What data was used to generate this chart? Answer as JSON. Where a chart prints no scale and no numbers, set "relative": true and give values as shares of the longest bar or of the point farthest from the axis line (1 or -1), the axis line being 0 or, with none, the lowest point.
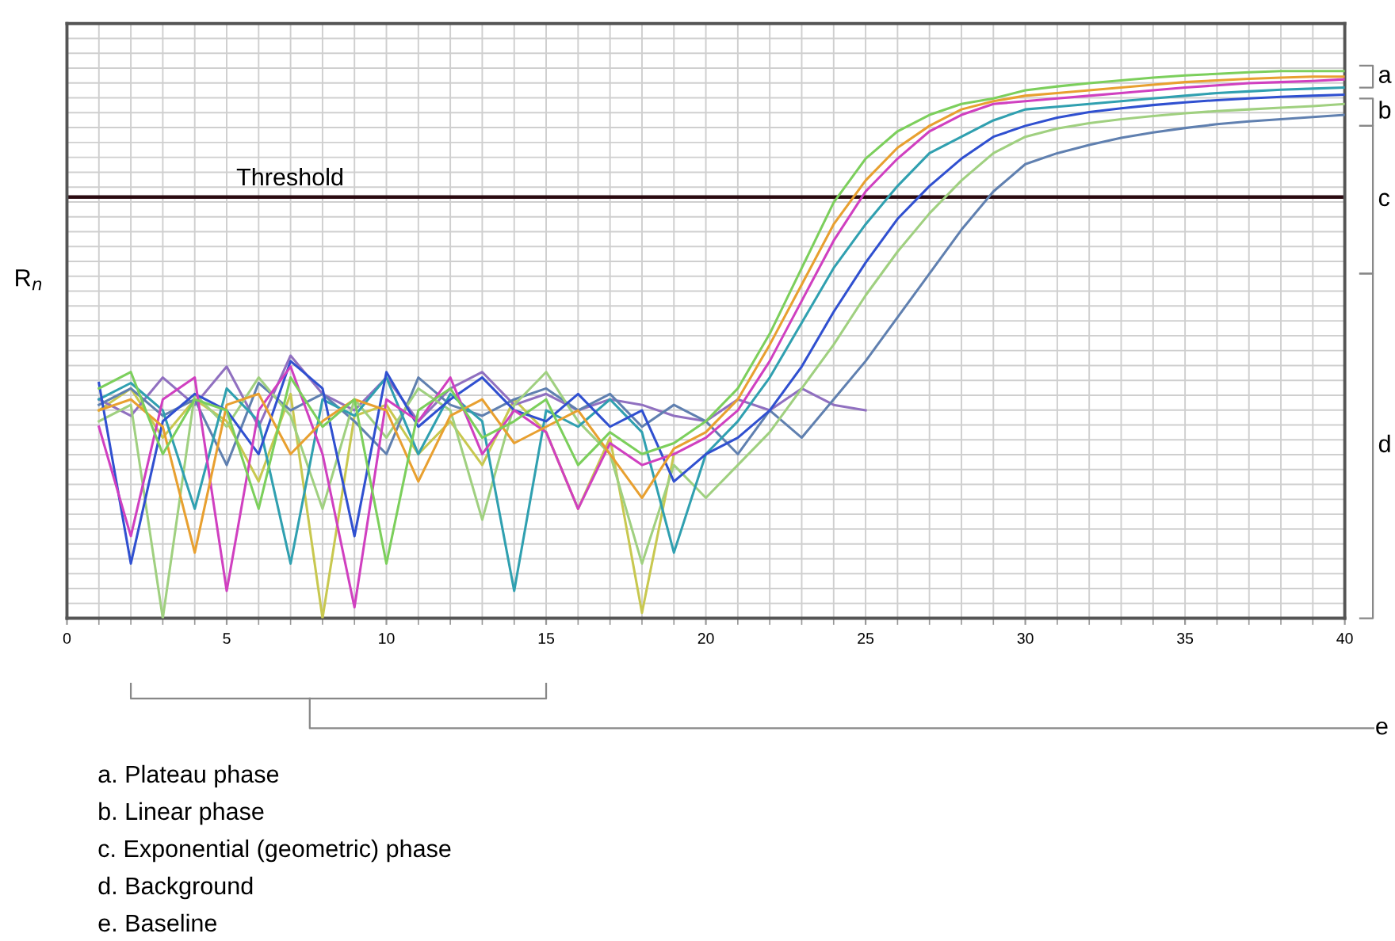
{
  "chart_data": {
    "type": "line",
    "relative": true,
    "ylabel": "R$_{n}$",
    "xlim": [
      0,
      40
    ],
    "xticks": [
      0,
      5,
      10,
      15,
      20,
      25,
      30,
      35,
      40
    ],
    "grid": true,
    "legend": false,
    "marker": "none",
    "line_style": "solid",
    "x": [
      1,
      2,
      3,
      4,
      5,
      6,
      7,
      8,
      9,
      10,
      11,
      12,
      13,
      14,
      15,
      16,
      17,
      18,
      19,
      20,
      21,
      22,
      23,
      24,
      25,
      26,
      27,
      28,
      29,
      30,
      31,
      32,
      33,
      34,
      35,
      36,
      37,
      38,
      39,
      40
    ],
    "series": [
      {
        "color": "#7ccf5c",
        "values": [
          0.42,
          0.45,
          0.3,
          0.4,
          0.38,
          0.2,
          0.44,
          0.35,
          0.4,
          0.1,
          0.38,
          0.42,
          0.33,
          0.36,
          0.4,
          0.28,
          0.34,
          0.3,
          0.32,
          0.36,
          0.42,
          0.52,
          0.64,
          0.76,
          0.84,
          0.89,
          0.92,
          0.94,
          0.95,
          0.965,
          0.972,
          0.978,
          0.983,
          0.988,
          0.992,
          0.995,
          0.998,
          1.0,
          1.0,
          1.0
        ]
      },
      {
        "color": "#e8a030",
        "values": [
          0.38,
          0.4,
          0.35,
          0.12,
          0.39,
          0.41,
          0.3,
          0.36,
          0.4,
          0.38,
          0.25,
          0.37,
          0.4,
          0.32,
          0.35,
          0.38,
          0.3,
          0.22,
          0.31,
          0.34,
          0.4,
          0.5,
          0.61,
          0.72,
          0.8,
          0.86,
          0.9,
          0.93,
          0.945,
          0.955,
          0.96,
          0.965,
          0.97,
          0.975,
          0.98,
          0.983,
          0.986,
          0.988,
          0.99,
          0.99
        ]
      },
      {
        "color": "#d040c0",
        "values": [
          0.35,
          0.15,
          0.4,
          0.44,
          0.05,
          0.38,
          0.46,
          0.3,
          0.02,
          0.4,
          0.36,
          0.44,
          0.3,
          0.38,
          0.34,
          0.2,
          0.32,
          0.28,
          0.3,
          0.33,
          0.38,
          0.47,
          0.58,
          0.69,
          0.78,
          0.84,
          0.89,
          0.92,
          0.94,
          0.945,
          0.95,
          0.955,
          0.96,
          0.965,
          0.97,
          0.974,
          0.978,
          0.98,
          0.982,
          0.985
        ]
      },
      {
        "color": "#3050d0",
        "values": [
          0.43,
          0.1,
          0.36,
          0.41,
          0.38,
          0.3,
          0.47,
          0.42,
          0.15,
          0.45,
          0.35,
          0.4,
          0.44,
          0.38,
          0.36,
          0.41,
          0.35,
          0.38,
          0.25,
          0.3,
          0.33,
          0.38,
          0.46,
          0.56,
          0.65,
          0.73,
          0.79,
          0.84,
          0.88,
          0.9,
          0.915,
          0.925,
          0.932,
          0.938,
          0.943,
          0.947,
          0.95,
          0.953,
          0.955,
          0.957
        ]
      },
      {
        "color": "#30a0b0",
        "values": [
          0.4,
          0.43,
          0.38,
          0.2,
          0.42,
          0.36,
          0.1,
          0.4,
          0.37,
          0.44,
          0.3,
          0.41,
          0.36,
          0.05,
          0.38,
          0.35,
          0.4,
          0.34,
          0.12,
          0.3,
          0.36,
          0.44,
          0.54,
          0.64,
          0.72,
          0.79,
          0.85,
          0.88,
          0.91,
          0.93,
          0.935,
          0.94,
          0.945,
          0.95,
          0.955,
          0.96,
          0.963,
          0.966,
          0.968,
          0.97
        ]
      },
      {
        "color": "#a0d080",
        "values": [
          0.36,
          0.39,
          0.0,
          0.41,
          0.35,
          0.44,
          0.37,
          0.2,
          0.4,
          0.33,
          0.42,
          0.38,
          0.18,
          0.39,
          0.45,
          0.36,
          0.3,
          0.1,
          0.28,
          0.22,
          0.28,
          0.34,
          0.42,
          0.5,
          0.59,
          0.67,
          0.74,
          0.8,
          0.85,
          0.88,
          0.895,
          0.905,
          0.912,
          0.918,
          0.923,
          0.927,
          0.93,
          0.933,
          0.936,
          0.94
        ]
      },
      {
        "color": "#6080b0",
        "values": [
          0.39,
          0.42,
          0.37,
          0.4,
          0.28,
          0.43,
          0.38,
          0.41,
          0.36,
          0.3,
          0.44,
          0.39,
          0.37,
          0.4,
          0.42,
          0.38,
          0.41,
          0.35,
          0.39,
          0.36,
          0.3,
          0.38,
          0.33,
          0.4,
          0.47,
          0.55,
          0.63,
          0.71,
          0.78,
          0.83,
          0.85,
          0.865,
          0.878,
          0.888,
          0.896,
          0.903,
          0.908,
          0.912,
          0.916,
          0.92
        ]
      },
      {
        "color": "#9070c0",
        "values": [
          0.4,
          0.37,
          0.44,
          0.39,
          0.46,
          0.35,
          0.48,
          0.41,
          0.38,
          0.44,
          0.36,
          0.42,
          0.45,
          0.39,
          0.41,
          0.38,
          0.4,
          0.39,
          0.37,
          0.36,
          0.4,
          0.38,
          0.42,
          0.39,
          0.38,
          null,
          null,
          null,
          null,
          null,
          null,
          null,
          null,
          null,
          null,
          null,
          null,
          null,
          null,
          null
        ]
      },
      {
        "color": "#c8c850",
        "values": [
          0.38,
          0.42,
          0.33,
          0.4,
          0.36,
          0.25,
          0.41,
          0.0,
          0.37,
          0.39,
          0.3,
          0.36,
          0.28,
          0.4,
          0.34,
          0.2,
          0.33,
          0.01,
          0.3,
          null,
          null,
          null,
          null,
          null,
          null,
          null,
          null,
          null,
          null,
          null,
          null,
          null,
          null,
          null,
          null,
          null,
          null,
          null,
          null,
          null
        ]
      }
    ],
    "ref_lines": [
      {
        "axis": "y",
        "value": 0.77,
        "label": "Threshold",
        "color": "#2a0a10"
      }
    ],
    "annotations": [
      "a",
      "b",
      "c",
      "d",
      "e",
      "a. Plateau phase",
      "b. Linear phase",
      "c. Exponential (geometric) phase",
      "d. Background",
      "e. Baseline"
    ]
  }
}
